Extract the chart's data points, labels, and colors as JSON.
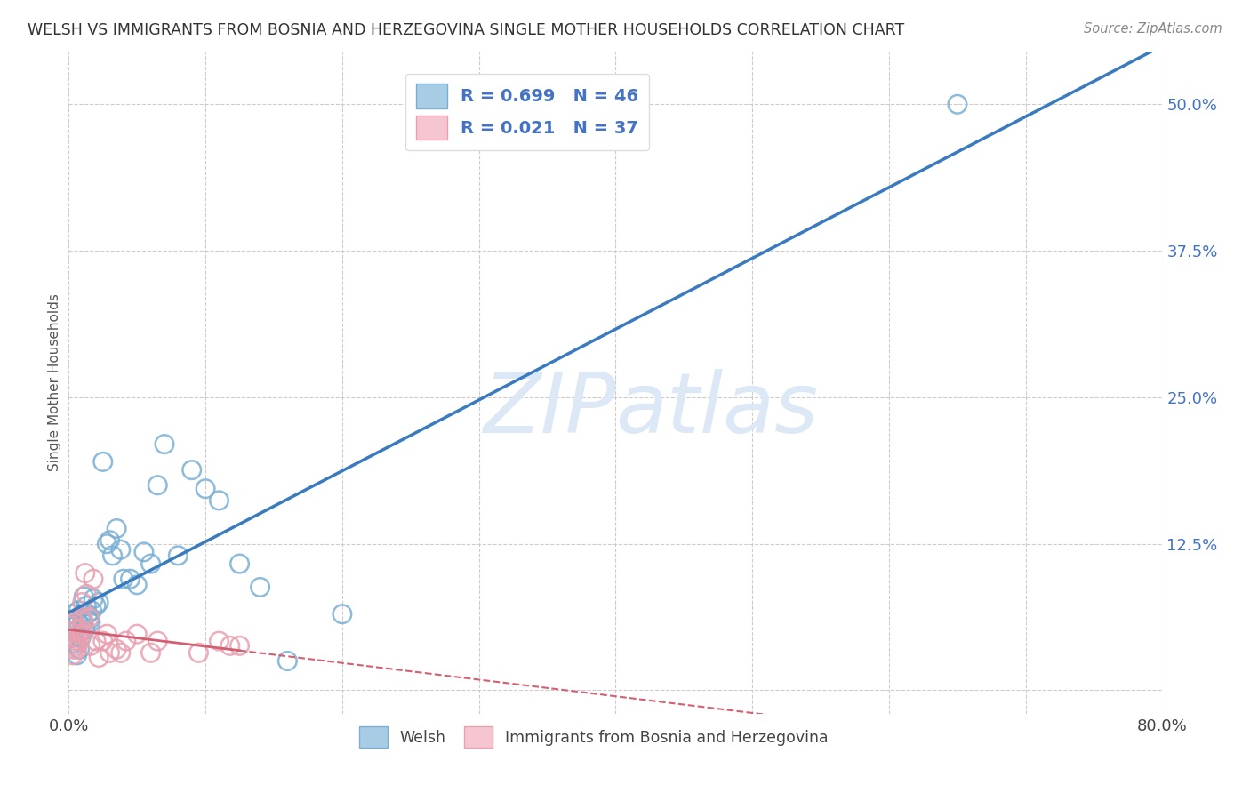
{
  "title": "WELSH VS IMMIGRANTS FROM BOSNIA AND HERZEGOVINA SINGLE MOTHER HOUSEHOLDS CORRELATION CHART",
  "source": "Source: ZipAtlas.com",
  "ylabel": "Single Mother Households",
  "xlim": [
    0.0,
    0.8
  ],
  "ylim": [
    -0.02,
    0.545
  ],
  "xticks": [
    0.0,
    0.1,
    0.2,
    0.3,
    0.4,
    0.5,
    0.6,
    0.7,
    0.8
  ],
  "yticks": [
    0.0,
    0.125,
    0.25,
    0.375,
    0.5
  ],
  "yticklabels": [
    "",
    "12.5%",
    "25.0%",
    "37.5%",
    "50.0%"
  ],
  "welsh_R": 0.699,
  "welsh_N": 46,
  "bosnia_R": 0.021,
  "bosnia_N": 37,
  "blue_color": "#a8cce4",
  "blue_edge_color": "#7ab0d4",
  "blue_line_color": "#3a7bbf",
  "pink_color": "#f5c6d0",
  "pink_edge_color": "#e8a0b0",
  "pink_line_color": "#d45f72",
  "watermark_color": "#dce8f5",
  "background_color": "#ffffff",
  "grid_color": "#cccccc",
  "legend_label1": "Welsh",
  "legend_label2": "Immigrants from Bosnia and Herzegovina",
  "welsh_x": [
    0.001,
    0.002,
    0.003,
    0.003,
    0.004,
    0.005,
    0.005,
    0.006,
    0.007,
    0.007,
    0.008,
    0.009,
    0.01,
    0.01,
    0.011,
    0.012,
    0.013,
    0.014,
    0.015,
    0.016,
    0.017,
    0.018,
    0.02,
    0.022,
    0.025,
    0.028,
    0.03,
    0.032,
    0.035,
    0.038,
    0.04,
    0.045,
    0.05,
    0.055,
    0.06,
    0.065,
    0.07,
    0.08,
    0.09,
    0.1,
    0.11,
    0.125,
    0.14,
    0.16,
    0.2,
    0.65
  ],
  "welsh_y": [
    0.06,
    0.055,
    0.065,
    0.045,
    0.04,
    0.05,
    0.055,
    0.03,
    0.068,
    0.058,
    0.035,
    0.045,
    0.062,
    0.058,
    0.08,
    0.052,
    0.072,
    0.065,
    0.06,
    0.058,
    0.068,
    0.078,
    0.072,
    0.075,
    0.195,
    0.125,
    0.128,
    0.115,
    0.138,
    0.12,
    0.095,
    0.095,
    0.09,
    0.118,
    0.108,
    0.175,
    0.21,
    0.115,
    0.188,
    0.172,
    0.162,
    0.108,
    0.088,
    0.025,
    0.065,
    0.5
  ],
  "bosnia_x": [
    0.001,
    0.001,
    0.002,
    0.002,
    0.003,
    0.003,
    0.004,
    0.005,
    0.005,
    0.006,
    0.006,
    0.007,
    0.008,
    0.009,
    0.01,
    0.01,
    0.011,
    0.012,
    0.013,
    0.015,
    0.016,
    0.018,
    0.02,
    0.022,
    0.025,
    0.028,
    0.03,
    0.035,
    0.038,
    0.042,
    0.05,
    0.06,
    0.065,
    0.095,
    0.11,
    0.118,
    0.125
  ],
  "bosnia_y": [
    0.045,
    0.05,
    0.04,
    0.055,
    0.035,
    0.03,
    0.058,
    0.042,
    0.038,
    0.052,
    0.035,
    0.048,
    0.042,
    0.052,
    0.062,
    0.075,
    0.058,
    0.1,
    0.082,
    0.062,
    0.038,
    0.095,
    0.042,
    0.028,
    0.042,
    0.048,
    0.032,
    0.035,
    0.032,
    0.042,
    0.048,
    0.032,
    0.042,
    0.032,
    0.042,
    0.038,
    0.038
  ]
}
